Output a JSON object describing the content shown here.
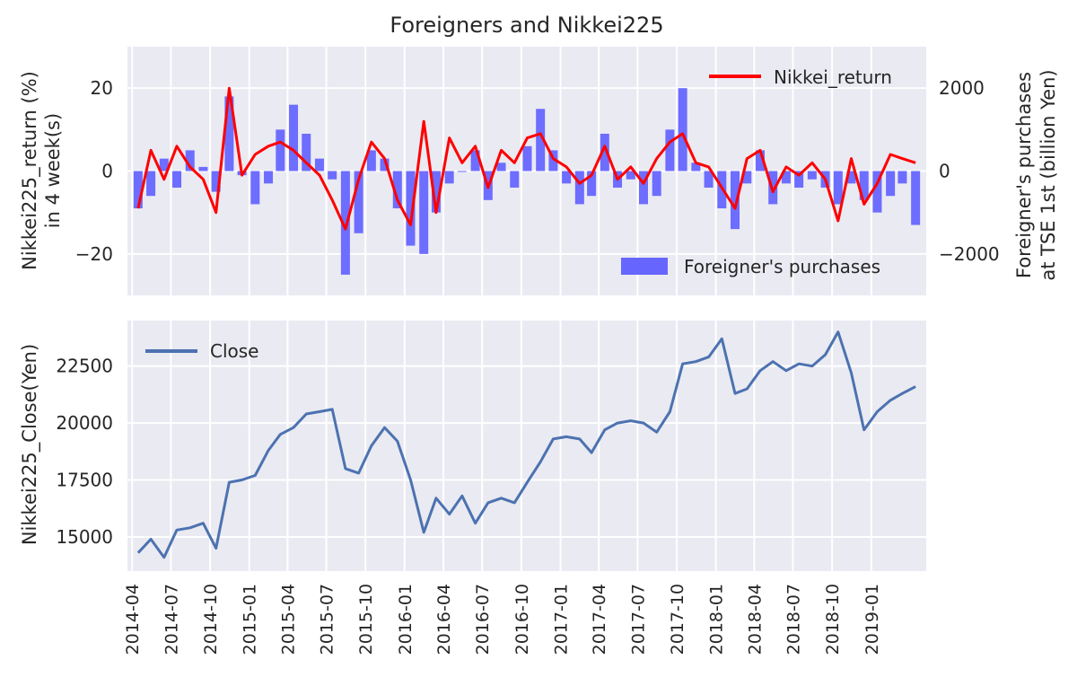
{
  "figure_title": "Foreigners and Nikkei225",
  "chart_data": [
    {
      "type": "bar+line",
      "name": "top-panel",
      "ylabel_left": [
        "Nikkei225_return (%)",
        "in 4 week(s)"
      ],
      "ylabel_right": [
        "Foreigner's purchases",
        "at TSE 1st (billion Yen)"
      ],
      "ylim_left": [
        -30,
        30
      ],
      "ylim_right": [
        -3000,
        3000
      ],
      "yticks_left": [
        20,
        0,
        -20
      ],
      "ytick_labels_left": [
        "20",
        "0",
        "−20"
      ],
      "yticks_right": [
        2000,
        0,
        -2000
      ],
      "ytick_labels_right": [
        "2000",
        "0",
        "−2000"
      ],
      "grid": true,
      "line_series": {
        "name": "Nikkei_return",
        "color": "#ff0000",
        "x": [
          "2014-04",
          "2014-05",
          "2014-06",
          "2014-07",
          "2014-08",
          "2014-09",
          "2014-10",
          "2014-11",
          "2014-12",
          "2015-01",
          "2015-02",
          "2015-03",
          "2015-04",
          "2015-05",
          "2015-06",
          "2015-07",
          "2015-08",
          "2015-09",
          "2015-10",
          "2015-11",
          "2015-12",
          "2016-01",
          "2016-02",
          "2016-03",
          "2016-04",
          "2016-05",
          "2016-06",
          "2016-07",
          "2016-08",
          "2016-09",
          "2016-10",
          "2016-11",
          "2016-12",
          "2017-01",
          "2017-02",
          "2017-03",
          "2017-04",
          "2017-05",
          "2017-06",
          "2017-07",
          "2017-08",
          "2017-09",
          "2017-10",
          "2017-11",
          "2017-12",
          "2018-01",
          "2018-02",
          "2018-03",
          "2018-04",
          "2018-05",
          "2018-06",
          "2018-07",
          "2018-08",
          "2018-09",
          "2018-10",
          "2018-11",
          "2018-12",
          "2019-01",
          "2019-02",
          "2019-03",
          "2019-04"
        ],
        "y": [
          -9,
          5,
          -2,
          6,
          1,
          -2,
          -10,
          20,
          -1,
          4,
          6,
          7,
          5,
          2,
          -1,
          -7,
          -14,
          -2,
          7,
          3,
          -7,
          -13,
          12,
          -10,
          8,
          2,
          6,
          -4,
          5,
          2,
          8,
          9,
          3,
          1,
          -3,
          -1,
          6,
          -2,
          1,
          -3,
          3,
          7,
          9,
          2,
          1,
          -4,
          -9,
          3,
          5,
          -5,
          1,
          -1,
          2,
          -2,
          -12,
          3,
          -8,
          -3,
          4,
          3,
          2
        ]
      },
      "bar_series": {
        "name": "Foreigner's purchases",
        "color": "#6666ff",
        "x": [
          "2014-04",
          "2014-05",
          "2014-06",
          "2014-07",
          "2014-08",
          "2014-09",
          "2014-10",
          "2014-11",
          "2014-12",
          "2015-01",
          "2015-02",
          "2015-03",
          "2015-04",
          "2015-05",
          "2015-06",
          "2015-07",
          "2015-08",
          "2015-09",
          "2015-10",
          "2015-11",
          "2015-12",
          "2016-01",
          "2016-02",
          "2016-03",
          "2016-04",
          "2016-05",
          "2016-06",
          "2016-07",
          "2016-08",
          "2016-09",
          "2016-10",
          "2016-11",
          "2016-12",
          "2017-01",
          "2017-02",
          "2017-03",
          "2017-04",
          "2017-05",
          "2017-06",
          "2017-07",
          "2017-08",
          "2017-09",
          "2017-10",
          "2017-11",
          "2017-12",
          "2018-01",
          "2018-02",
          "2018-03",
          "2018-04",
          "2018-05",
          "2018-06",
          "2018-07",
          "2018-08",
          "2018-09",
          "2018-10",
          "2018-11",
          "2018-12",
          "2019-01",
          "2019-02",
          "2019-03",
          "2019-04"
        ],
        "y": [
          -900,
          -600,
          300,
          -400,
          500,
          100,
          -500,
          1800,
          -100,
          -800,
          -300,
          1000,
          1600,
          900,
          300,
          -200,
          -2500,
          -1500,
          500,
          300,
          -900,
          -1800,
          -2000,
          -1000,
          -300,
          0,
          500,
          -700,
          200,
          -400,
          600,
          1500,
          500,
          -300,
          -800,
          -600,
          900,
          -400,
          -200,
          -800,
          -600,
          1000,
          2000,
          200,
          -400,
          -900,
          -1400,
          -300,
          500,
          -800,
          -300,
          -400,
          -200,
          -400,
          -800,
          -300,
          -700,
          -1000,
          -600,
          -300,
          -1300
        ]
      }
    },
    {
      "type": "line",
      "name": "bottom-panel",
      "ylabel": "Nikkei225_Close(Yen)",
      "ylim": [
        13500,
        24500
      ],
      "yticks": [
        15000,
        17500,
        20000,
        22500
      ],
      "ytick_labels": [
        "15000",
        "17500",
        "20000",
        "22500"
      ],
      "grid": true,
      "series": [
        {
          "name": "Close",
          "color": "#4c72b0",
          "x": [
            "2014-04",
            "2014-05",
            "2014-06",
            "2014-07",
            "2014-08",
            "2014-09",
            "2014-10",
            "2014-11",
            "2014-12",
            "2015-01",
            "2015-02",
            "2015-03",
            "2015-04",
            "2015-05",
            "2015-06",
            "2015-07",
            "2015-08",
            "2015-09",
            "2015-10",
            "2015-11",
            "2015-12",
            "2016-01",
            "2016-02",
            "2016-03",
            "2016-04",
            "2016-05",
            "2016-06",
            "2016-07",
            "2016-08",
            "2016-09",
            "2016-10",
            "2016-11",
            "2016-12",
            "2017-01",
            "2017-02",
            "2017-03",
            "2017-04",
            "2017-05",
            "2017-06",
            "2017-07",
            "2017-08",
            "2017-09",
            "2017-10",
            "2017-11",
            "2017-12",
            "2018-01",
            "2018-02",
            "2018-03",
            "2018-04",
            "2018-05",
            "2018-06",
            "2018-07",
            "2018-08",
            "2018-09",
            "2018-10",
            "2018-11",
            "2018-12",
            "2019-01",
            "2019-02",
            "2019-03",
            "2019-04"
          ],
          "y": [
            14300,
            14900,
            14100,
            15300,
            15400,
            15600,
            14500,
            17400,
            17500,
            17700,
            18800,
            19500,
            19800,
            20400,
            20500,
            20600,
            18000,
            17800,
            19000,
            19800,
            19200,
            17500,
            15200,
            16700,
            16000,
            16800,
            15600,
            16500,
            16700,
            16500,
            17400,
            18300,
            19300,
            19400,
            19300,
            18700,
            19700,
            20000,
            20100,
            20000,
            19600,
            20500,
            22600,
            22700,
            22900,
            23700,
            21300,
            21500,
            22300,
            22700,
            22300,
            22600,
            22500,
            23000,
            24000,
            22200,
            19700,
            20500,
            21000,
            21300,
            21600
          ]
        }
      ]
    }
  ],
  "x_axis": {
    "labels": [
      "2014-04",
      "2014-07",
      "2014-10",
      "2015-01",
      "2015-04",
      "2015-07",
      "2015-10",
      "2016-01",
      "2016-04",
      "2016-07",
      "2016-10",
      "2017-01",
      "2017-04",
      "2017-07",
      "2017-10",
      "2018-01",
      "2018-04",
      "2018-07",
      "2018-10",
      "2019-01"
    ],
    "start": "2014-03-21",
    "end": "2019-05-10"
  },
  "legends": {
    "top_line": "Nikkei_return",
    "top_bars": "Foreigner's purchases",
    "bottom_line": "Close"
  }
}
